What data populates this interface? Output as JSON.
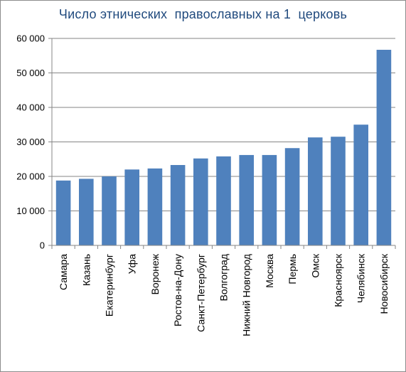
{
  "chart_data": {
    "type": "bar",
    "title": "Число этнических  православных на 1  церковь",
    "xlabel": "",
    "ylabel": "",
    "categories": [
      "Самара",
      "Казань",
      "Екатеринбург",
      "Уфа",
      "Воронеж",
      "Ростов-на-Дону",
      "Санкт-Петербург",
      "Волгоград",
      "Нижний Новгород",
      "Москва",
      "Пермь",
      "Омск",
      "Красноярск",
      "Челябинск",
      "Новосибирск"
    ],
    "values": [
      18800,
      19300,
      20000,
      22000,
      22300,
      23300,
      25200,
      25800,
      26200,
      26200,
      28200,
      31300,
      31500,
      35000,
      56700
    ],
    "ylim": [
      0,
      60000
    ],
    "yticks": [
      0,
      10000,
      20000,
      30000,
      40000,
      50000,
      60000
    ],
    "ytick_labels": [
      "0",
      "10 000",
      "20 000",
      "30 000",
      "40 000",
      "50 000",
      "60 000"
    ],
    "grid": true,
    "legend": "none",
    "bar_color": "#4f81bd",
    "grid_color": "#868686"
  }
}
